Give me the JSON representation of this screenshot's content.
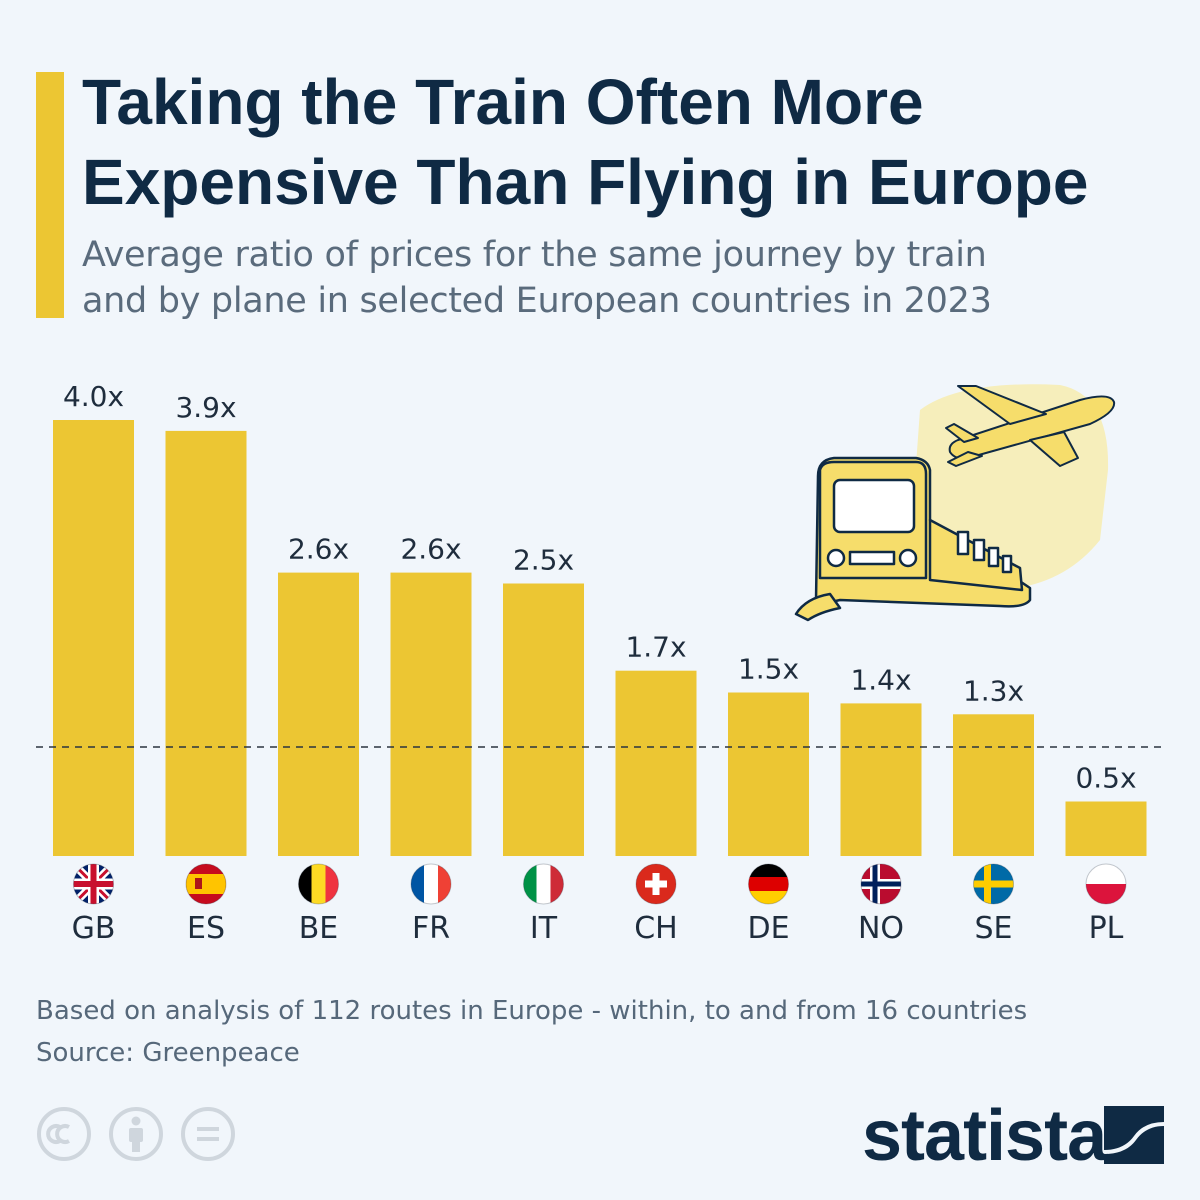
{
  "header": {
    "title_line1": "Taking the Train Often More",
    "title_line2": "Expensive Than Flying in Europe",
    "subtitle_line1": "Average ratio of prices for the same journey by train",
    "subtitle_line2": "and by plane in selected European countries in 2023"
  },
  "chart_data": {
    "type": "bar",
    "categories": [
      "GB",
      "ES",
      "BE",
      "FR",
      "IT",
      "CH",
      "DE",
      "NO",
      "SE",
      "PL"
    ],
    "values": [
      4.0,
      3.9,
      2.6,
      2.6,
      2.5,
      1.7,
      1.5,
      1.4,
      1.3,
      0.5
    ],
    "data_labels": [
      "4.0x",
      "3.9x",
      "2.6x",
      "2.6x",
      "2.5x",
      "1.7x",
      "1.5x",
      "1.4x",
      "1.3x",
      "0.5x"
    ],
    "flags": [
      "gb-flag-icon",
      "es-flag-icon",
      "be-flag-icon",
      "fr-flag-icon",
      "it-flag-icon",
      "ch-flag-icon",
      "de-flag-icon",
      "no-flag-icon",
      "se-flag-icon",
      "pl-flag-icon"
    ],
    "reference_line": 1.0,
    "ylim": [
      0,
      4.0
    ],
    "grid": false,
    "bar_color": "#ecc633"
  },
  "illustration": {
    "icons": [
      "train-icon",
      "airplane-icon"
    ]
  },
  "footer": {
    "note": "Based on analysis of 112 routes in Europe - within, to and from 16 countries",
    "source": "Source: Greenpeace",
    "license_icons": [
      "cc-icon",
      "attribution-icon",
      "no-derivatives-icon"
    ],
    "brand": "statista"
  },
  "colors": {
    "accent": "#ecc633",
    "title": "#0f2a44",
    "text": "#5a6b7c",
    "background": "#f1f6fb"
  }
}
